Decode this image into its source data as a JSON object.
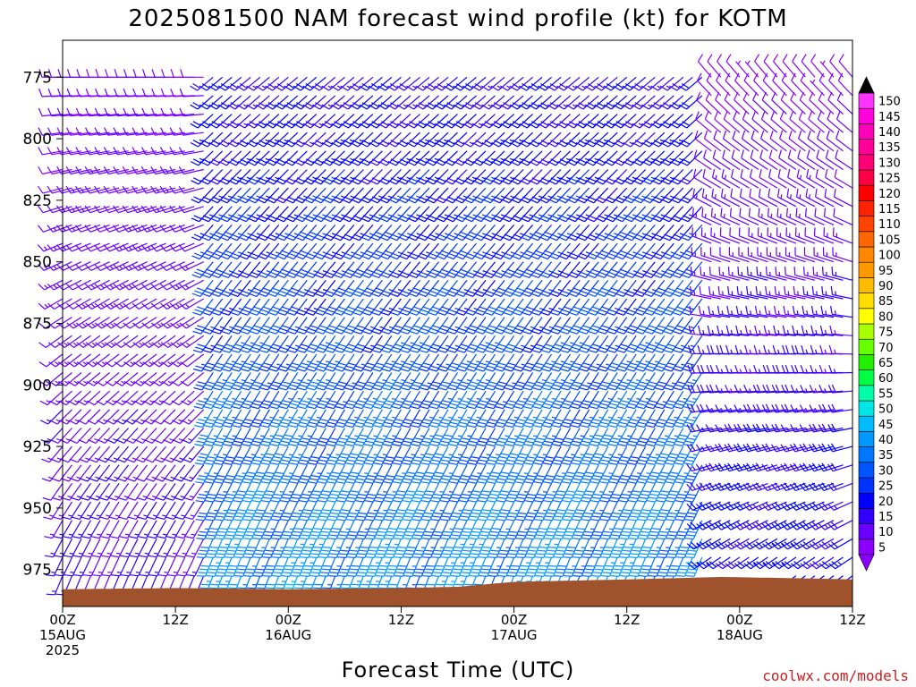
{
  "chart_data": {
    "type": "wind_barb_time_height",
    "title": "2025081500 NAM forecast wind profile (kt) for KOTM",
    "xlabel": "Forecast Time (UTC)",
    "ylabel": "",
    "units": "kt",
    "x_ticks": [
      {
        "hour": 0,
        "lines": [
          "00Z",
          "15AUG",
          "2025"
        ]
      },
      {
        "hour": 12,
        "lines": [
          "12Z"
        ]
      },
      {
        "hour": 24,
        "lines": [
          "00Z",
          "16AUG"
        ]
      },
      {
        "hour": 36,
        "lines": [
          "12Z"
        ]
      },
      {
        "hour": 48,
        "lines": [
          "00Z",
          "17AUG"
        ]
      },
      {
        "hour": 60,
        "lines": [
          "12Z"
        ]
      },
      {
        "hour": 72,
        "lines": [
          "00Z",
          "18AUG"
        ]
      },
      {
        "hour": 84,
        "lines": [
          "12Z"
        ]
      }
    ],
    "xlim": [
      0,
      84
    ],
    "y_ticks": [
      "775",
      "800",
      "825",
      "850",
      "875",
      "900",
      "925",
      "950",
      "975"
    ],
    "ylim": [
      990,
      760
    ],
    "y_scale": "pressure (inverted)",
    "barb_hours": {
      "start": 0,
      "end": 84,
      "step": 1
    },
    "barb_levels": {
      "top": 775,
      "bottom": 985,
      "step": 7.5
    },
    "wind_regime_approx": [
      {
        "hours": [
          0,
          15
        ],
        "levels": "upper",
        "direction_deg": 270,
        "speed_kt": 10
      },
      {
        "hours": [
          0,
          15
        ],
        "levels": "lower",
        "direction_deg": 200,
        "speed_kt": 15
      },
      {
        "hours": [
          16,
          68
        ],
        "levels": "upper",
        "direction_deg": 230,
        "speed_kt": 18
      },
      {
        "hours": [
          16,
          68
        ],
        "levels": "lower",
        "direction_deg": 200,
        "speed_kt": 40
      },
      {
        "hours": [
          69,
          84
        ],
        "levels": "upper",
        "direction_deg": 320,
        "speed_kt": 8
      },
      {
        "hours": [
          69,
          84
        ],
        "levels": "lower",
        "direction_deg": 230,
        "speed_kt": 22
      }
    ],
    "surface_pressure_approx": [
      {
        "hour": 0,
        "pressure": 983
      },
      {
        "hour": 12,
        "pressure": 982.5
      },
      {
        "hour": 24,
        "pressure": 983
      },
      {
        "hour": 36,
        "pressure": 982.5
      },
      {
        "hour": 42,
        "pressure": 982
      },
      {
        "hour": 48,
        "pressure": 980
      },
      {
        "hour": 60,
        "pressure": 979
      },
      {
        "hour": 70,
        "pressure": 978
      },
      {
        "hour": 78,
        "pressure": 978.5
      },
      {
        "hour": 84,
        "pressure": 979
      }
    ],
    "colorbar": {
      "labels": [
        "5",
        "10",
        "15",
        "20",
        "25",
        "30",
        "35",
        "40",
        "45",
        "50",
        "55",
        "60",
        "65",
        "70",
        "75",
        "80",
        "85",
        "90",
        "95",
        "100",
        "105",
        "110",
        "115",
        "120",
        "125",
        "130",
        "135",
        "140",
        "145",
        "150"
      ],
      "colors": [
        "#8b00ff",
        "#6a00ff",
        "#3300ff",
        "#0000ff",
        "#0033ff",
        "#0055ff",
        "#0077ff",
        "#0099ff",
        "#00bbff",
        "#00e5e5",
        "#00ffaa",
        "#00ff44",
        "#22ee00",
        "#66ff00",
        "#aaff00",
        "#ffff00",
        "#ffdd00",
        "#ffbb00",
        "#ff9900",
        "#ff8800",
        "#ff6600",
        "#ff4400",
        "#ff2200",
        "#ff0000",
        "#ff0044",
        "#ff0077",
        "#ff0099",
        "#ff00bb",
        "#ff00dd",
        "#ff33ff"
      ],
      "arrow_min_color": "#8b00ff",
      "arrow_max_color": "#000000"
    },
    "terrain_color": "#a0522d"
  },
  "watermark": "coolwx.com/models",
  "watermark_color": "#c81e1e"
}
